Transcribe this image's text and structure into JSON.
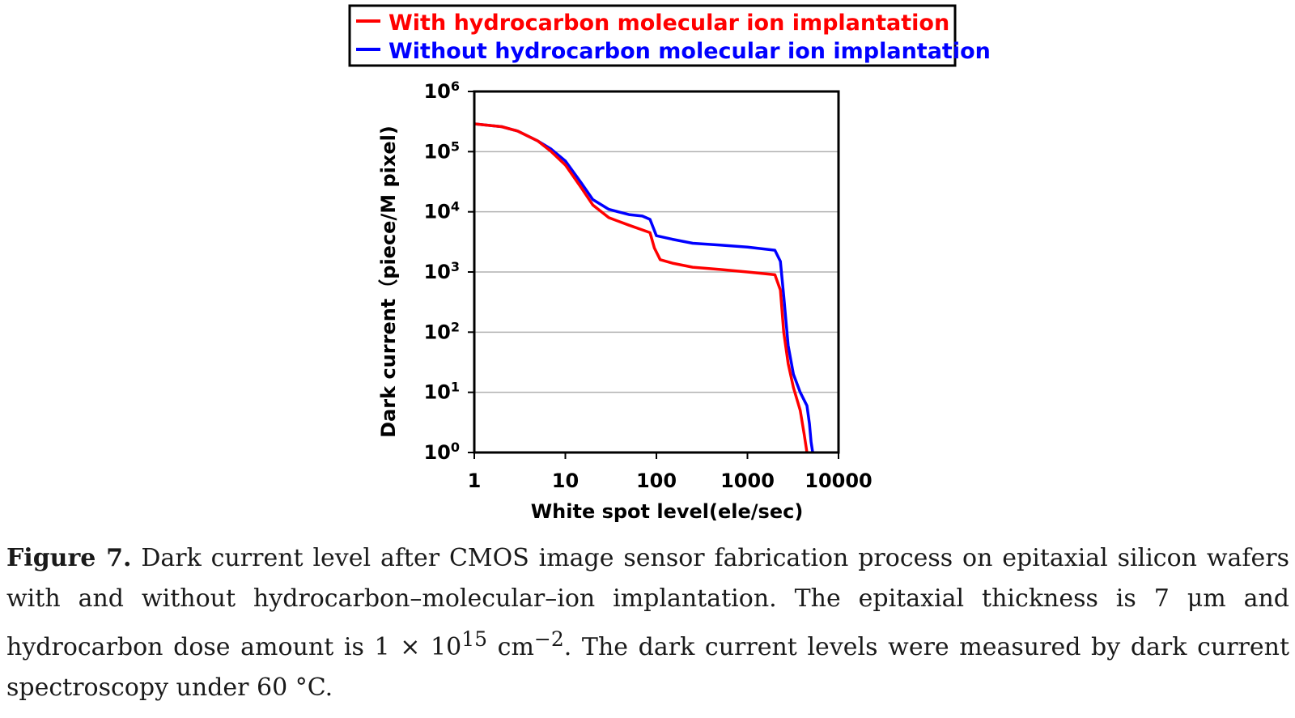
{
  "chart_data": {
    "type": "line",
    "xlabel": "White spot level(ele/sec)",
    "ylabel": "Dark current（piece/M pixel)",
    "x_scale": "log",
    "y_scale": "log",
    "xlim": [
      1,
      10000
    ],
    "ylim": [
      1,
      1000000
    ],
    "x_ticks": [
      "1",
      "10",
      "100",
      "1000",
      "10000"
    ],
    "y_ticks": [
      {
        "base": "10",
        "exp": "0"
      },
      {
        "base": "10",
        "exp": "1"
      },
      {
        "base": "10",
        "exp": "2"
      },
      {
        "base": "10",
        "exp": "3"
      },
      {
        "base": "10",
        "exp": "4"
      },
      {
        "base": "10",
        "exp": "5"
      },
      {
        "base": "10",
        "exp": "6"
      }
    ],
    "grid": "horizontal",
    "legend_position": "top",
    "series": [
      {
        "name": "With hydrocarbon molecular ion implantation",
        "color": "#ff0000",
        "points": [
          [
            1,
            290000
          ],
          [
            2,
            260000
          ],
          [
            3,
            220000
          ],
          [
            5,
            150000
          ],
          [
            7,
            100000
          ],
          [
            10,
            60000
          ],
          [
            15,
            25000
          ],
          [
            20,
            13000
          ],
          [
            30,
            8000
          ],
          [
            50,
            6000
          ],
          [
            70,
            5000
          ],
          [
            85,
            4500
          ],
          [
            95,
            2500
          ],
          [
            110,
            1600
          ],
          [
            150,
            1400
          ],
          [
            250,
            1200
          ],
          [
            500,
            1100
          ],
          [
            1000,
            1000
          ],
          [
            2000,
            900
          ],
          [
            2300,
            500
          ],
          [
            2500,
            100
          ],
          [
            2800,
            30
          ],
          [
            3200,
            12
          ],
          [
            3800,
            5
          ],
          [
            4200,
            2
          ],
          [
            4500,
            1
          ]
        ]
      },
      {
        "name": "Without hydrocarbon molecular ion implantation",
        "color": "#0000ff",
        "points": [
          [
            1,
            290000
          ],
          [
            2,
            260000
          ],
          [
            3,
            220000
          ],
          [
            5,
            150000
          ],
          [
            7,
            110000
          ],
          [
            10,
            70000
          ],
          [
            15,
            30000
          ],
          [
            20,
            16000
          ],
          [
            30,
            11000
          ],
          [
            50,
            9000
          ],
          [
            70,
            8500
          ],
          [
            85,
            7500
          ],
          [
            100,
            4000
          ],
          [
            150,
            3500
          ],
          [
            250,
            3000
          ],
          [
            500,
            2800
          ],
          [
            1000,
            2600
          ],
          [
            2000,
            2300
          ],
          [
            2300,
            1500
          ],
          [
            2500,
            400
          ],
          [
            2800,
            60
          ],
          [
            3200,
            20
          ],
          [
            3800,
            10
          ],
          [
            4500,
            6
          ],
          [
            4800,
            3
          ],
          [
            5000,
            1.5
          ],
          [
            5200,
            1
          ]
        ]
      }
    ]
  },
  "caption": {
    "label": "Figure 7.",
    "text_before_power": " Dark current level after CMOS image sensor fabrication process on epitaxial silicon wafers with and without hydrocarbon–molecular–ion implantation.  The epitaxial thickness is 7 μm and hydrocarbon dose amount is 1 × 10",
    "power1": "15",
    "text_middle": " cm",
    "power2": "−2",
    "text_after": ". The dark current levels were measured by dark current spectroscopy under 60 °C."
  }
}
